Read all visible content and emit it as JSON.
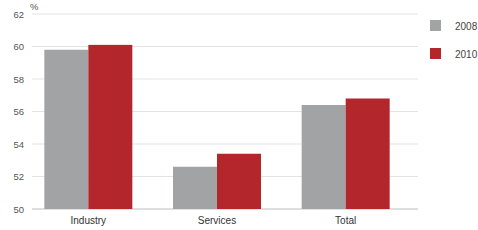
{
  "chart_data": {
    "type": "bar",
    "ylabel": "%",
    "categories": [
      "Industry",
      "Services",
      "Total"
    ],
    "series": [
      {
        "name": "2008",
        "color": "#a1a3a5",
        "values": [
          59.8,
          52.6,
          56.4
        ]
      },
      {
        "name": "2010",
        "color": "#b3262b",
        "values": [
          60.1,
          53.4,
          56.8
        ]
      }
    ],
    "ylim": [
      50,
      62
    ],
    "yticks": [
      50,
      52,
      54,
      56,
      58,
      60,
      62
    ],
    "grid": true,
    "legend": "top-right"
  }
}
